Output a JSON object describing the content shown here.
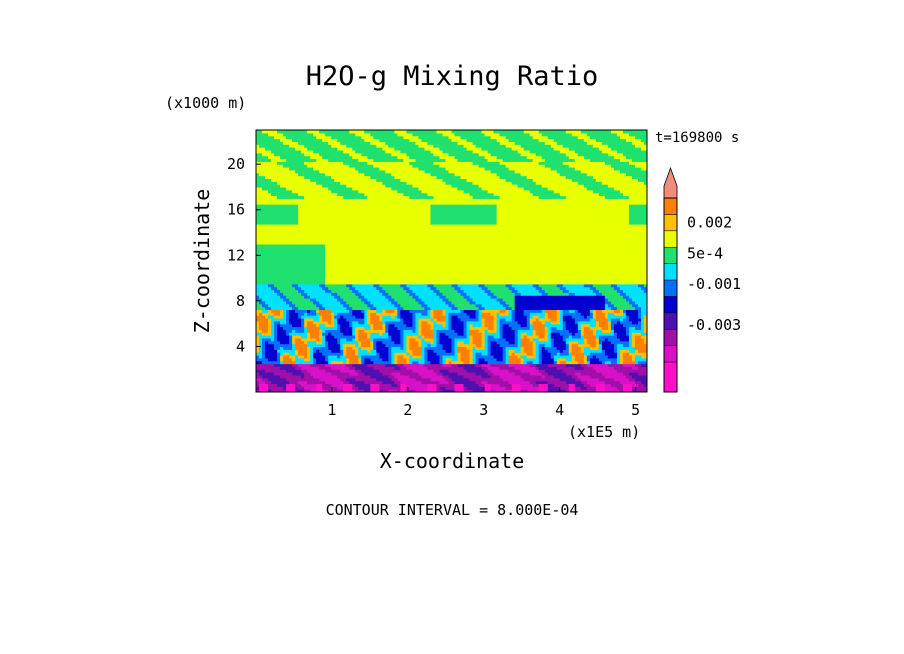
{
  "chart_data": {
    "type": "heatmap",
    "title": "H2O-g Mixing Ratio",
    "xlabel": "X-coordinate",
    "ylabel": "Z-coordinate",
    "x_unit": "(x1E5 m)",
    "y_unit": "(x1000 m)",
    "time_label": "t=169800 s",
    "contour_interval_label": "CONTOUR INTERVAL = 8.000E-04",
    "xlim": [
      0,
      5.15
    ],
    "ylim": [
      0,
      23
    ],
    "x_ticks": [
      1,
      2,
      3,
      4,
      5
    ],
    "y_ticks": [
      4,
      8,
      12,
      16,
      20
    ],
    "x_tick_labels": [
      "1",
      "2",
      "3",
      "4",
      "5"
    ],
    "y_tick_labels": [
      "4",
      "8",
      "12",
      "16",
      "20"
    ],
    "colorbar": {
      "levels": [
        -0.0048,
        -0.004,
        -0.0032,
        -0.0024,
        -0.0016,
        -0.0008,
        0.0,
        0.0008,
        0.0016,
        0.0024,
        0.0032
      ],
      "colors": [
        "#ff10c8",
        "#d810c8",
        "#a010a8",
        "#5010b0",
        "#0000d0",
        "#0070ff",
        "#00e0ff",
        "#20e070",
        "#e8ff00",
        "#ffc000",
        "#ff8000",
        "#ff2000",
        "#f08c7c"
      ],
      "labels": [
        "0.002",
        "5e-4",
        "-0.001",
        "-0.003"
      ],
      "label_values": [
        0.002,
        0.0005,
        -0.001,
        -0.003
      ],
      "extend": "max"
    },
    "field_description": {
      "bands": [
        {
          "z_range": [
            20,
            23
          ],
          "level_index": 7,
          "pattern": "green with yellow streaks"
        },
        {
          "z_range": [
            17,
            20
          ],
          "level_index": 8,
          "pattern": "yellow with green patches"
        },
        {
          "z_range": [
            9.5,
            17
          ],
          "level_index": 8,
          "pattern": "mostly yellow, green lobes"
        },
        {
          "z_range": [
            7,
            9.5
          ],
          "level_index": 6,
          "pattern": "cyan/blue tongues"
        },
        {
          "z_range": [
            2.5,
            7
          ],
          "level_index": 9,
          "pattern": "orange plumes with cyan and blue"
        },
        {
          "z_range": [
            0,
            2.5
          ],
          "level_index": 2,
          "pattern": "purple/magenta low values"
        }
      ]
    }
  }
}
